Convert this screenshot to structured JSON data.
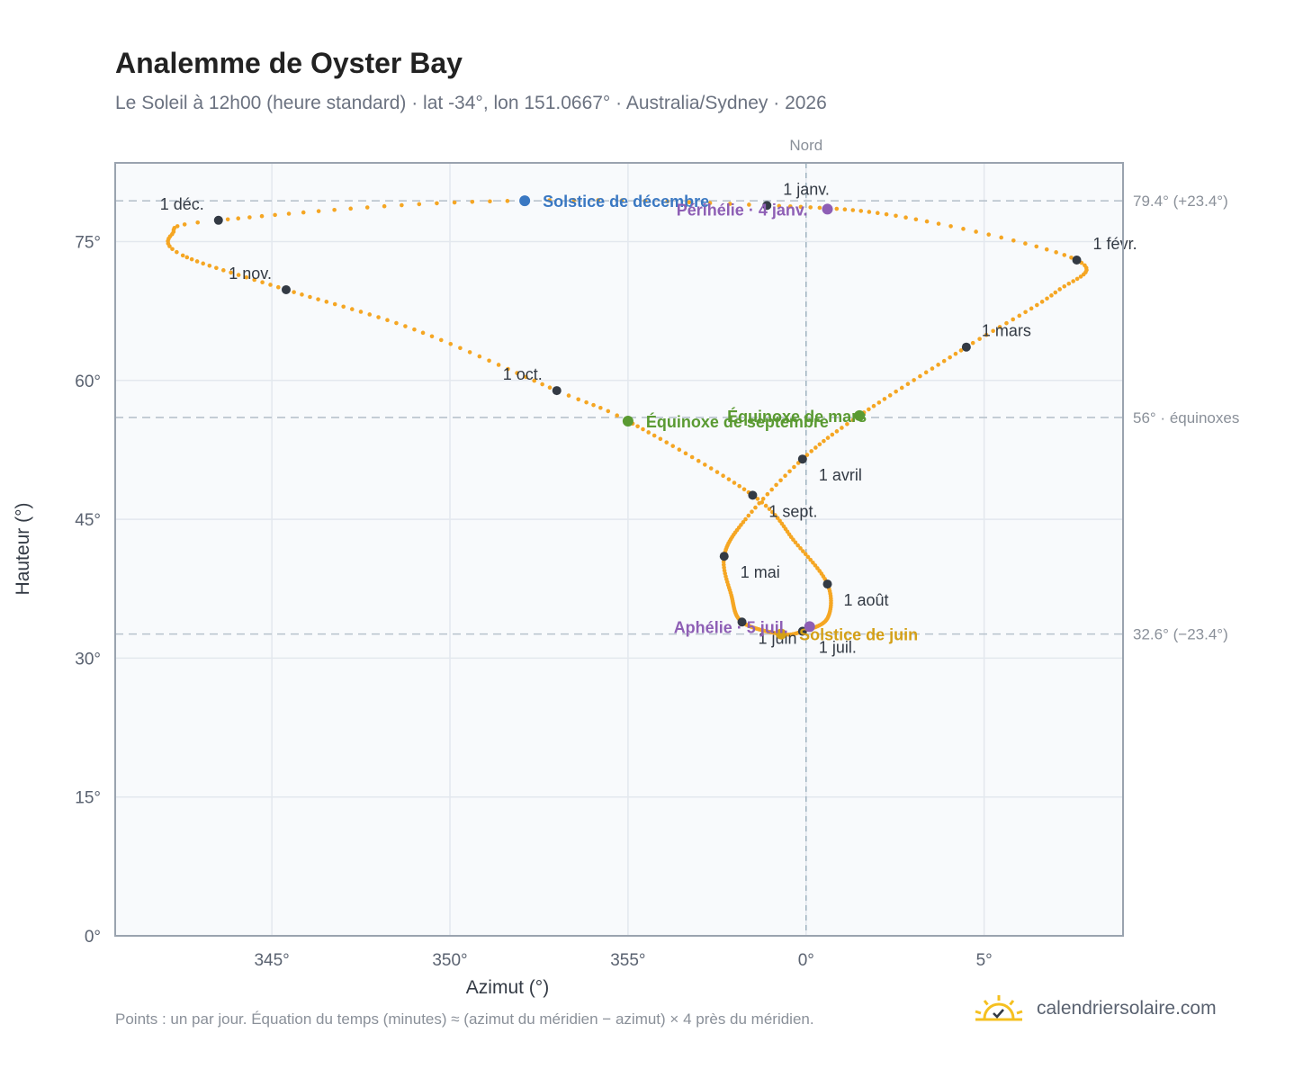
{
  "title": "Analemme de Oyster Bay",
  "subtitle": "Le Soleil à 12h00 (heure standard) · lat -34°, lon 151.0667° · Australia/Sydney · 2026",
  "footnote": "Points : un par jour. Équation du temps (minutes) ≈ (azimut du méridien − azimut) × 4 près du méridien.",
  "brand": {
    "name": "calendriersolaire.com",
    "icon": "sun-check-icon"
  },
  "colors": {
    "curve": "#f5a623",
    "month_marker": "#333a44",
    "solstice_dec": "#3a78c2",
    "solstice_jun": "#d4a017",
    "equinox": "#5a9a32",
    "apsis": "#8e5fb5",
    "reference_line": "#b8c2cc",
    "plot_bg": "#f8fafc",
    "grid": "#e3e8ee",
    "frame": "#9aa3af"
  },
  "chart_data": {
    "type": "scatter",
    "xlabel": "Azimut (°)",
    "ylabel": "Hauteur (°)",
    "xlim": [
      -19.4,
      8.9
    ],
    "ylim": [
      0,
      83.5
    ],
    "x_ticks": [
      -15,
      -10,
      -5,
      0,
      5
    ],
    "x_tick_labels": [
      "345°",
      "350°",
      "355°",
      "0°",
      "5°"
    ],
    "y_ticks": [
      0,
      15,
      30,
      45,
      60,
      75
    ],
    "y_tick_labels": [
      "0°",
      "15°",
      "30°",
      "45°",
      "60°",
      "75°"
    ],
    "north_label": "Nord",
    "grid": true,
    "reference_lines": [
      {
        "altitude": 79.4,
        "label": "79.4° (+23.4°)"
      },
      {
        "altitude": 56.0,
        "label": "56° · équinoxes"
      },
      {
        "altitude": 32.6,
        "label": "32.6° (−23.4°)"
      }
    ],
    "analemma_knots": [
      {
        "day": 1,
        "az": -1.1,
        "alt": 78.9
      },
      {
        "day": 16,
        "az": 2.8,
        "alt": 77.6
      },
      {
        "day": 32,
        "az": 7.6,
        "alt": 73.0
      },
      {
        "day": 45,
        "az": 7.0,
        "alt": 69.5
      },
      {
        "day": 60,
        "az": 4.5,
        "alt": 63.6
      },
      {
        "day": 79,
        "az": 1.5,
        "alt": 56.2
      },
      {
        "day": 91,
        "az": -0.1,
        "alt": 51.5
      },
      {
        "day": 105,
        "az": -1.7,
        "alt": 45.0
      },
      {
        "day": 121,
        "az": -2.3,
        "alt": 41.0
      },
      {
        "day": 135,
        "az": -2.1,
        "alt": 36.8
      },
      {
        "day": 152,
        "az": -1.8,
        "alt": 33.9
      },
      {
        "day": 172,
        "az": -0.7,
        "alt": 32.6
      },
      {
        "day": 182,
        "az": -0.1,
        "alt": 32.9
      },
      {
        "day": 197,
        "az": 0.6,
        "alt": 34.3
      },
      {
        "day": 213,
        "az": 0.6,
        "alt": 38.0
      },
      {
        "day": 228,
        "az": -0.3,
        "alt": 42.5
      },
      {
        "day": 244,
        "az": -1.5,
        "alt": 47.6
      },
      {
        "day": 266,
        "az": -5.0,
        "alt": 55.6
      },
      {
        "day": 274,
        "az": -7.0,
        "alt": 58.9
      },
      {
        "day": 290,
        "az": -11.0,
        "alt": 65.5
      },
      {
        "day": 305,
        "az": -14.6,
        "alt": 69.8
      },
      {
        "day": 320,
        "az": -17.5,
        "alt": 73.5
      },
      {
        "day": 328,
        "az": -17.8,
        "alt": 75.8
      },
      {
        "day": 335,
        "az": -16.5,
        "alt": 77.3
      },
      {
        "day": 355,
        "az": -7.9,
        "alt": 79.4
      },
      {
        "day": 366,
        "az": -1.1,
        "alt": 78.9
      }
    ],
    "month_markers": [
      {
        "label": "1 janv.",
        "az": -1.1,
        "alt": 78.9
      },
      {
        "label": "1 févr.",
        "az": 7.6,
        "alt": 73.0
      },
      {
        "label": "1 mars",
        "az": 4.5,
        "alt": 63.6
      },
      {
        "label": "1 avril",
        "az": -0.1,
        "alt": 51.5
      },
      {
        "label": "1 mai",
        "az": -2.3,
        "alt": 41.0
      },
      {
        "label": "1 juin",
        "az": -1.8,
        "alt": 33.9
      },
      {
        "label": "1 juil.",
        "az": -0.1,
        "alt": 32.9
      },
      {
        "label": "1 août",
        "az": 0.6,
        "alt": 38.0
      },
      {
        "label": "1 sept.",
        "az": -1.5,
        "alt": 47.6
      },
      {
        "label": "1 oct.",
        "az": -7.0,
        "alt": 58.9
      },
      {
        "label": "1 nov.",
        "az": -14.6,
        "alt": 69.8
      },
      {
        "label": "1 déc.",
        "az": -16.5,
        "alt": 77.3
      }
    ],
    "special_points": [
      {
        "label": "Solstice de décembre",
        "az": -7.9,
        "alt": 79.4,
        "kind": "solstice_dec"
      },
      {
        "label": "Solstice de juin",
        "az": -0.7,
        "alt": 32.6,
        "kind": "solstice_jun"
      },
      {
        "label": "Équinoxe de mars",
        "az": 1.5,
        "alt": 56.2,
        "kind": "equinox"
      },
      {
        "label": "Équinoxe de septembre",
        "az": -5.0,
        "alt": 55.6,
        "kind": "equinox"
      },
      {
        "label": "Périhélie · 4 janv.",
        "az": 0.6,
        "alt": 78.5,
        "kind": "apsis"
      },
      {
        "label": "Aphélie · 5 juil.",
        "az": 0.1,
        "alt": 33.4,
        "kind": "apsis"
      }
    ]
  }
}
